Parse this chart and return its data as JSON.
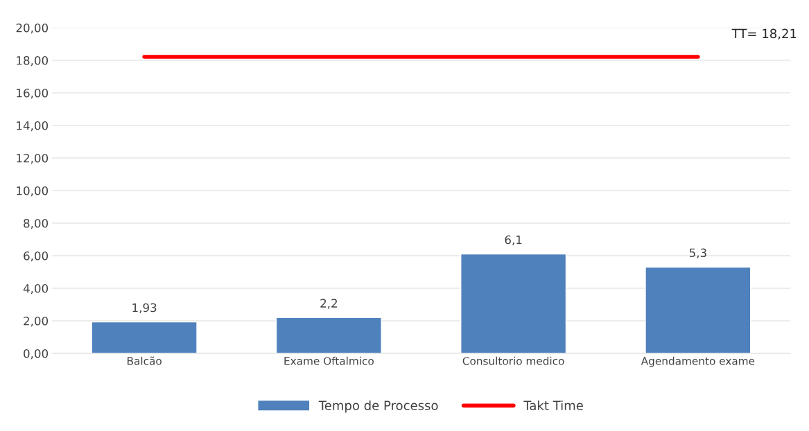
{
  "chart_data": {
    "type": "bar",
    "categories": [
      "Balcão",
      "Exame Oftalmico",
      "Consultorio medico",
      "Agendamento exame"
    ],
    "series": [
      {
        "name": "Tempo de Processo",
        "color": "#4f81bd",
        "values": [
          1.93,
          2.2,
          6.1,
          5.3
        ],
        "value_labels": [
          "1,93",
          "2,2",
          "6,1",
          "5,3"
        ]
      },
      {
        "name": "Takt Time",
        "type": "line",
        "color": "#ff0000",
        "values": [
          18.21,
          18.21,
          18.21,
          18.21
        ]
      }
    ],
    "ylim": [
      0,
      20
    ],
    "yticks": [
      {
        "value": 0,
        "label": "0,00"
      },
      {
        "value": 2,
        "label": "2,00"
      },
      {
        "value": 4,
        "label": "4,00"
      },
      {
        "value": 6,
        "label": "6,00"
      },
      {
        "value": 8,
        "label": "8,00"
      },
      {
        "value": 10,
        "label": "10,00"
      },
      {
        "value": 12,
        "label": "12,00"
      },
      {
        "value": 14,
        "label": "14,00"
      },
      {
        "value": 16,
        "label": "16,00"
      },
      {
        "value": 18,
        "label": "18,00"
      },
      {
        "value": 20,
        "label": "20,00"
      }
    ],
    "grid": "y",
    "legend": "bottom",
    "annotations": [
      "TT= 18,21"
    ]
  }
}
